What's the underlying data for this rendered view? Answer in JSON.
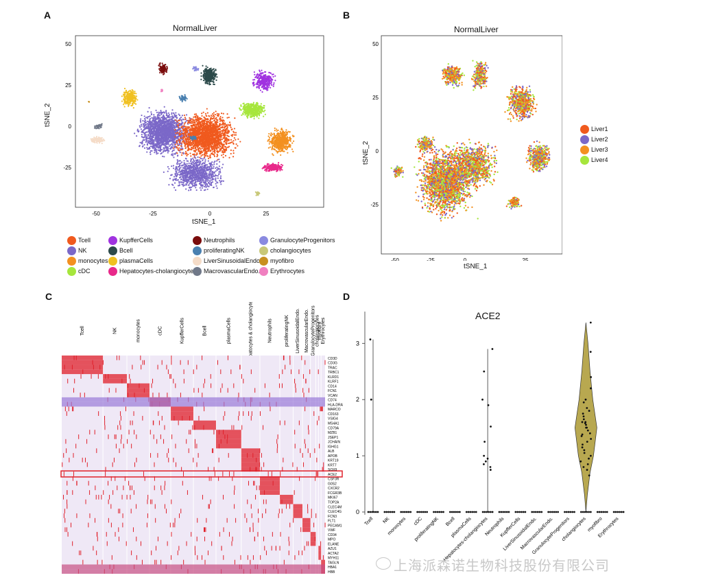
{
  "panels": {
    "a": {
      "letter": "A",
      "title": "NormalLiver",
      "xlabel": "tSNE_1",
      "ylabel": "tSNE_2",
      "xticks": [
        "-50",
        "-25",
        "0",
        "25"
      ],
      "yticks": [
        "50",
        "25",
        "0",
        "-25"
      ]
    },
    "b": {
      "letter": "B",
      "title": "NormalLiver",
      "xlabel": "tSNE_1",
      "ylabel": "tSNE_2",
      "xticks": [
        "-50",
        "-25",
        "0",
        "25"
      ],
      "yticks": [
        "50",
        "25",
        "0",
        "-25"
      ]
    },
    "c": {
      "letter": "C"
    },
    "d": {
      "letter": "D",
      "title": "ACE2"
    }
  },
  "legend_a": [
    {
      "label": "Tcell",
      "color": "#f05a1e"
    },
    {
      "label": "NK",
      "color": "#7b68c8"
    },
    {
      "label": "monocytes",
      "color": "#f39020"
    },
    {
      "label": "cDC",
      "color": "#a6e63c"
    },
    {
      "label": "KupfferCells",
      "color": "#a033e0"
    },
    {
      "label": "Bcell",
      "color": "#2c4a4a"
    },
    {
      "label": "plasmaCells",
      "color": "#f0c020"
    },
    {
      "label": "Hepatocytes-cholangiocytes",
      "color": "#e8288a"
    },
    {
      "label": "Neutrophils",
      "color": "#7a0c0c"
    },
    {
      "label": "proliferatingNK",
      "color": "#4a80b0"
    },
    {
      "label": "LiverSinusoidalEndo.",
      "color": "#f5dcc8"
    },
    {
      "label": "MacrovascularEndo.",
      "color": "#707888"
    },
    {
      "label": "GranulocyteProgenitors",
      "color": "#8a8ae0"
    },
    {
      "label": "cholangiocytes",
      "color": "#c8c878"
    },
    {
      "label": "myofibro",
      "color": "#c89020"
    },
    {
      "label": "Erythrocytes",
      "color": "#f080c0"
    }
  ],
  "legend_b": [
    {
      "label": "Liver1",
      "color": "#f05a1e"
    },
    {
      "label": "Liver2",
      "color": "#7b68c8"
    },
    {
      "label": "Liver3",
      "color": "#f39020"
    },
    {
      "label": "Liver4",
      "color": "#a6e63c"
    }
  ],
  "heatmap": {
    "columns": [
      "Tcell",
      "NK",
      "monocytes",
      "cDC",
      "KupfferCells",
      "Bcell",
      "plasmaCells",
      "Hepatocytes & cholangiocytes",
      "Neutrophils",
      "proliferatingNK",
      "LiverSinusoidalEndo.",
      "MacrovascularEndo.",
      "GranulocyteProgenitors",
      "cholangiocytes",
      "myofibro",
      "Erythrocytes"
    ],
    "genes": [
      "CD3D",
      "CD3G",
      "TRAC",
      "TRBC1",
      "KLRD1",
      "KLRF1",
      "CD14",
      "FCN1",
      "VCAN",
      "CD74",
      "HLA-DRA",
      "MARCO",
      "CD163",
      "VSIG4",
      "MS4A1",
      "CD79A",
      "MZB1",
      "JSEP1",
      "JCHAIN",
      "IGHG1",
      "ALB",
      "APOB",
      "KRT19",
      "KRT7",
      "SOX9",
      "ACE2",
      "CSF3R",
      "G0S2",
      "CXCR2",
      "FCGR3B",
      "MKI67",
      "TOP2A",
      "CLEC4M",
      "CLEC4G",
      "FCN3",
      "FLT1",
      "PECAM1",
      "VWF",
      "CD34",
      "MPO",
      "ELANE",
      "AZU1",
      "ACTA2",
      "MYH11",
      "TAGLN",
      "HBA1",
      "HBB"
    ],
    "highlight_gene": "ACE2"
  },
  "chart_data": {
    "type": "violin",
    "title": "ACE2",
    "xlabel": "",
    "ylabel": "",
    "ylim": [
      0,
      3.4
    ],
    "yticks": [
      "0",
      "1",
      "2",
      "3"
    ],
    "categories": [
      "Tcell",
      "NK",
      "monocytes",
      "cDC",
      "proliferatingNK",
      "Bcell",
      "plasmaCells",
      "Hepatocytes-cholangiocytes",
      "Neutrophils",
      "KupfferCells",
      "LiverSinusoidalEndo.",
      "MacrovascularEndo.",
      "GranulocyteProgenitors",
      "cholangiocytes",
      "myofibro",
      "Erythrocytes"
    ],
    "max_values": [
      3.07,
      0,
      0,
      0,
      0,
      0,
      0,
      2.9,
      0,
      0,
      0,
      0,
      0,
      3.37,
      0,
      0
    ],
    "nonzero_points": {
      "Tcell": [
        3.07,
        2.0
      ],
      "Hepatocytes-cholangiocytes": [
        2.9,
        2.5,
        2.0,
        1.9,
        1.52,
        1.25,
        1.0,
        0.95,
        0.9,
        0.85,
        0.8,
        0.75
      ],
      "cholangiocytes": [
        3.37,
        2.85,
        2.4,
        2.2,
        2.0,
        1.95,
        1.85,
        1.8,
        1.75,
        1.7,
        1.65,
        1.6,
        1.6,
        1.58,
        1.55,
        1.5,
        1.5,
        1.45,
        1.4,
        1.38,
        1.35,
        1.3,
        1.25,
        1.2,
        1.15,
        1.1,
        1.05,
        1.0,
        0.95,
        0.9,
        0.85,
        0.8,
        0.75,
        0.65
      ]
    }
  },
  "watermark": "上海派森诺生物科技股份有限公司"
}
